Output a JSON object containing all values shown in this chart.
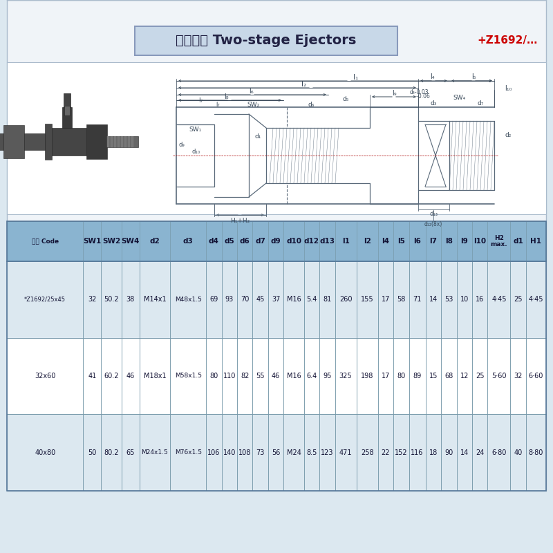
{
  "title_chinese": "二次顶出 Two-stage Ejectors",
  "title_ref": "+Z1692/…",
  "bg_color": "#dce8f0",
  "inner_bg": "#f0f4f8",
  "table_header_bg": "#8ab4d0",
  "table_row0_bg": "#ffffff",
  "table_row1_bg": "#dce8f0",
  "table_row2_bg": "#ffffff",
  "table_border_color": "#7799aa",
  "headers": [
    "型号 Code",
    "SW1",
    "SW2",
    "SW4",
    "d2",
    "d3",
    "d4",
    "d5",
    "d6",
    "d7",
    "d9",
    "d10",
    "d12",
    "d13",
    "l1",
    "l2",
    "l4",
    "l5",
    "l6",
    "l7",
    "l8",
    "l9",
    "l10",
    "H2\nmax.",
    "d1",
    "H1"
  ],
  "rows": [
    [
      "*Z1692/25x45",
      "32",
      "50.2",
      "38",
      "M14x1",
      "M48x1.5",
      "69",
      "93",
      "70",
      "45",
      "37",
      "M16",
      "5.4",
      "81",
      "260",
      "155",
      "17",
      "58",
      "71",
      "14",
      "53",
      "10",
      "16",
      "4·45",
      "25",
      "4·45"
    ],
    [
      "32x60",
      "41",
      "60.2",
      "46",
      "M18x1",
      "M58x1.5",
      "80",
      "110",
      "82",
      "55",
      "46",
      "M16",
      "6.4",
      "95",
      "325",
      "198",
      "17",
      "80",
      "89",
      "15",
      "68",
      "12",
      "25",
      "5·60",
      "32",
      "6·60"
    ],
    [
      "40x80",
      "50",
      "80.2",
      "65",
      "M24x1.5",
      "M76x1.5",
      "106",
      "140",
      "108",
      "73",
      "56",
      "M24",
      "8.5",
      "123",
      "471",
      "258",
      "22",
      "152",
      "116",
      "18",
      "90",
      "14",
      "24",
      "6·80",
      "40",
      "8·80"
    ]
  ],
  "line_color": "#5a6a7a",
  "dim_color": "#3a4a5a",
  "title_box_color": "#c8d8e8",
  "title_box_edge": "#8899bb"
}
